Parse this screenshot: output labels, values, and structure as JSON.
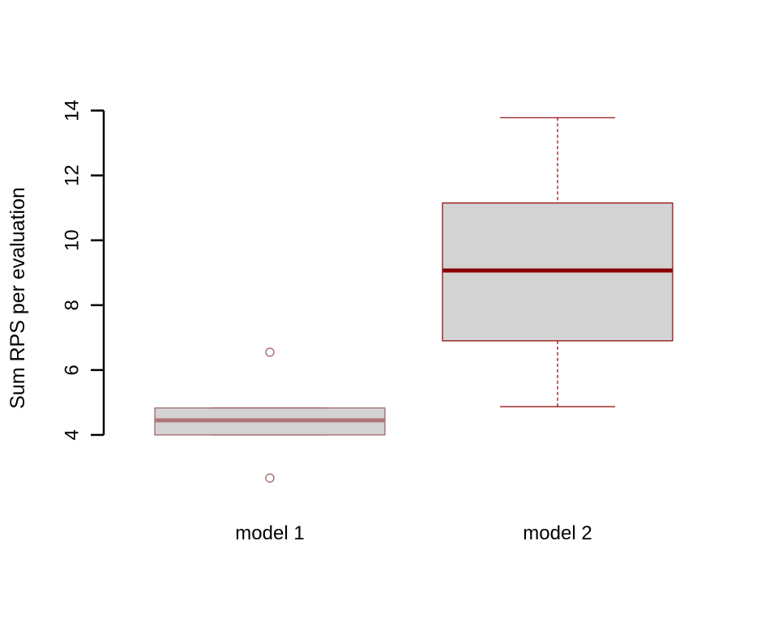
{
  "chart_data": {
    "type": "boxplot",
    "title": "",
    "xlabel": "",
    "ylabel": "Sum RPS per evaluation",
    "ylim": [
      2.2,
      15.0
    ],
    "y_ticks": [
      4,
      6,
      8,
      10,
      12,
      14
    ],
    "y_tick_labels": [
      "4",
      "6",
      "8",
      "10",
      "12",
      "14"
    ],
    "grid": false,
    "categories": [
      "model 1",
      "model 2"
    ],
    "boxes": [
      {
        "name": "model 1",
        "whisker_low": 4.0,
        "q1": 4.0,
        "median": 4.45,
        "q3": 4.83,
        "whisker_high": 4.83,
        "outliers": [
          6.55,
          2.67
        ],
        "fill": "#d3d3d3",
        "line_color": "#a05a5a",
        "median_color": "#b07575"
      },
      {
        "name": "model 2",
        "whisker_low": 4.87,
        "q1": 6.9,
        "median": 9.07,
        "q3": 11.15,
        "whisker_high": 13.78,
        "outliers": [],
        "fill": "#d3d3d3",
        "line_color": "#8b0000",
        "median_color": "#8b0000"
      }
    ]
  }
}
